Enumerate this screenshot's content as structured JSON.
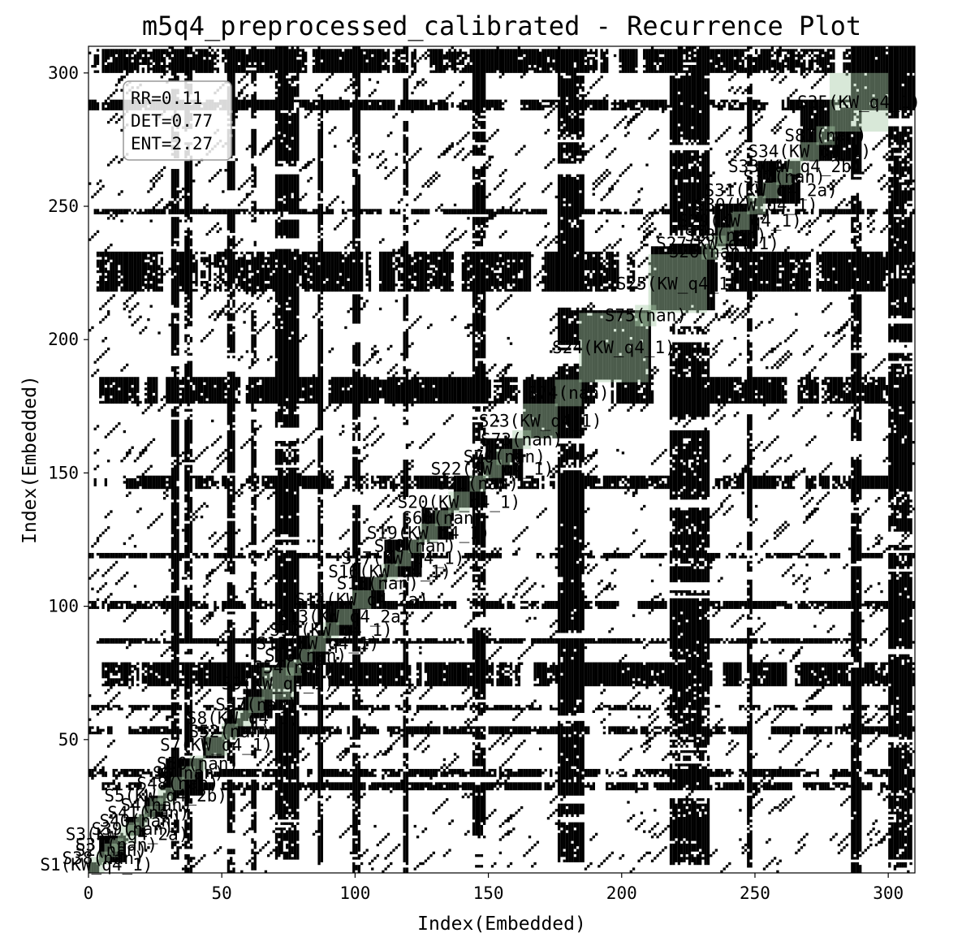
{
  "chart_data": {
    "type": "heatmap",
    "subtype": "recurrence-plot",
    "title": "m5q4_preprocessed_calibrated - Recurrence Plot",
    "xlabel": "Index(Embedded)",
    "ylabel": "Index(Embedded)",
    "xlim": [
      0,
      310
    ],
    "ylim": [
      0,
      310
    ],
    "xticks": [
      0,
      50,
      100,
      150,
      200,
      250,
      300
    ],
    "yticks": [
      50,
      100,
      150,
      200,
      250,
      300
    ],
    "grid": false,
    "colors": {
      "recurrence": "#000000",
      "background": "#ffffff",
      "segment_fill": "#a9cca9",
      "segment_alpha": 0.45
    },
    "stats_box": {
      "position": "top-left",
      "lines": [
        "RR=0.11",
        "DET=0.77",
        "ENT=2.27"
      ]
    },
    "recurrence_blocks": [
      [
        0,
        3
      ],
      [
        4,
        13
      ],
      [
        14,
        20
      ],
      [
        21,
        28
      ],
      [
        29,
        42
      ],
      [
        43,
        50
      ],
      [
        51,
        57
      ],
      [
        58,
        68
      ],
      [
        69,
        77
      ],
      [
        78,
        88
      ],
      [
        89,
        100
      ],
      [
        101,
        110
      ],
      [
        111,
        124
      ],
      [
        125,
        136
      ],
      [
        137,
        148
      ],
      [
        149,
        162
      ],
      [
        163,
        184
      ],
      [
        185,
        210
      ],
      [
        211,
        234
      ],
      [
        235,
        250
      ],
      [
        251,
        266
      ],
      [
        267,
        285
      ],
      [
        286,
        310
      ]
    ],
    "recurrence_vertical_bands": [
      [
        31,
        33
      ],
      [
        36,
        38
      ],
      [
        52,
        54
      ],
      [
        61,
        62
      ],
      [
        70,
        78
      ],
      [
        86,
        87
      ],
      [
        99,
        101
      ],
      [
        118,
        119
      ],
      [
        144,
        148
      ],
      [
        176,
        185
      ],
      [
        218,
        232
      ],
      [
        247,
        248
      ],
      [
        286,
        289
      ],
      [
        300,
        308
      ]
    ],
    "segments": [
      {
        "label": "S1(KW_q4_1)",
        "start": 0,
        "end": 6
      },
      {
        "label": "S38(nan)",
        "start": 3,
        "end": 8
      },
      {
        "label": "S2(nan)",
        "start": 6,
        "end": 11
      },
      {
        "label": "S37(nan)",
        "start": 8,
        "end": 13
      },
      {
        "label": "S3(KW_q4_2a)",
        "start": 11,
        "end": 18
      },
      {
        "label": "S39(nan)",
        "start": 14,
        "end": 19
      },
      {
        "label": "S40(nan)",
        "start": 17,
        "end": 22
      },
      {
        "label": "S41(nan)",
        "start": 20,
        "end": 25
      },
      {
        "label": "S4(nan)",
        "start": 23,
        "end": 28
      },
      {
        "label": "S5(KW_q4_2b)",
        "start": 26,
        "end": 32
      },
      {
        "label": "S48(nan)",
        "start": 31,
        "end": 36
      },
      {
        "label": "S6(nan)",
        "start": 35,
        "end": 40
      },
      {
        "label": "S50(nan)",
        "start": 38,
        "end": 44
      },
      {
        "label": "S7(KW_q4_1)",
        "start": 44,
        "end": 52
      },
      {
        "label": "S52(nan)",
        "start": 50,
        "end": 56
      },
      {
        "label": "S8(KW_q4_1)",
        "start": 55,
        "end": 61
      },
      {
        "label": "S57(nan)",
        "start": 60,
        "end": 66
      },
      {
        "label": "S9(KW_q4_1)",
        "start": 65,
        "end": 77
      },
      {
        "label": "S54(nan)",
        "start": 74,
        "end": 80
      },
      {
        "label": "S10(nan)",
        "start": 79,
        "end": 84
      },
      {
        "label": "S11(KW_q4_1)",
        "start": 83,
        "end": 89
      },
      {
        "label": "S12(KW_q4_1)",
        "start": 88,
        "end": 94
      },
      {
        "label": "S13(KW_q4_2a)",
        "start": 93,
        "end": 99
      },
      {
        "label": "S14(KW_q4_2a)",
        "start": 99,
        "end": 106
      },
      {
        "label": "S15(nan)",
        "start": 106,
        "end": 111
      },
      {
        "label": "S16(KW_q4_1)",
        "start": 110,
        "end": 116
      },
      {
        "label": "S17(KW_q4_1)",
        "start": 115,
        "end": 121
      },
      {
        "label": "S18(nan)",
        "start": 120,
        "end": 125
      },
      {
        "label": "S19(KW_q4_1)",
        "start": 124,
        "end": 131
      },
      {
        "label": "S66(nan)",
        "start": 130,
        "end": 136
      },
      {
        "label": "S20(KW_q4_1)",
        "start": 135,
        "end": 143
      },
      {
        "label": "S21(nan)",
        "start": 143,
        "end": 149
      },
      {
        "label": "S22(KW_q4_1)",
        "start": 148,
        "end": 155
      },
      {
        "label": "S70(nan)",
        "start": 153,
        "end": 159
      },
      {
        "label": "S73(nan)",
        "start": 159,
        "end": 166
      },
      {
        "label": "S23(KW_q4_1)",
        "start": 163,
        "end": 176
      },
      {
        "label": "S74(nan)",
        "start": 175,
        "end": 185
      },
      {
        "label": "S24(KW_q4_1)",
        "start": 184,
        "end": 210
      },
      {
        "label": "S75(nan)",
        "start": 205,
        "end": 213
      },
      {
        "label": "S25(KW_q4_1)",
        "start": 210,
        "end": 232
      },
      {
        "label": "S26(nan)",
        "start": 230,
        "end": 236
      },
      {
        "label": "S27(KW_q4_1)",
        "start": 233,
        "end": 239
      },
      {
        "label": "S28(nan)",
        "start": 236,
        "end": 242
      },
      {
        "label": "S29(KW_q4_1)",
        "start": 241,
        "end": 248
      },
      {
        "label": "S30(KW_q4_1)",
        "start": 247,
        "end": 254
      },
      {
        "label": "S31(KW_q4_2a)",
        "start": 253,
        "end": 259
      },
      {
        "label": "S32(nan)",
        "start": 258,
        "end": 264
      },
      {
        "label": "S33(KW_q4_2b)",
        "start": 262,
        "end": 268
      },
      {
        "label": "S34(KW_q4_1)",
        "start": 267,
        "end": 274
      },
      {
        "label": "S87(nan)",
        "start": 273,
        "end": 280
      },
      {
        "label": "S35(KW_q4_1)",
        "start": 278,
        "end": 300
      }
    ]
  }
}
